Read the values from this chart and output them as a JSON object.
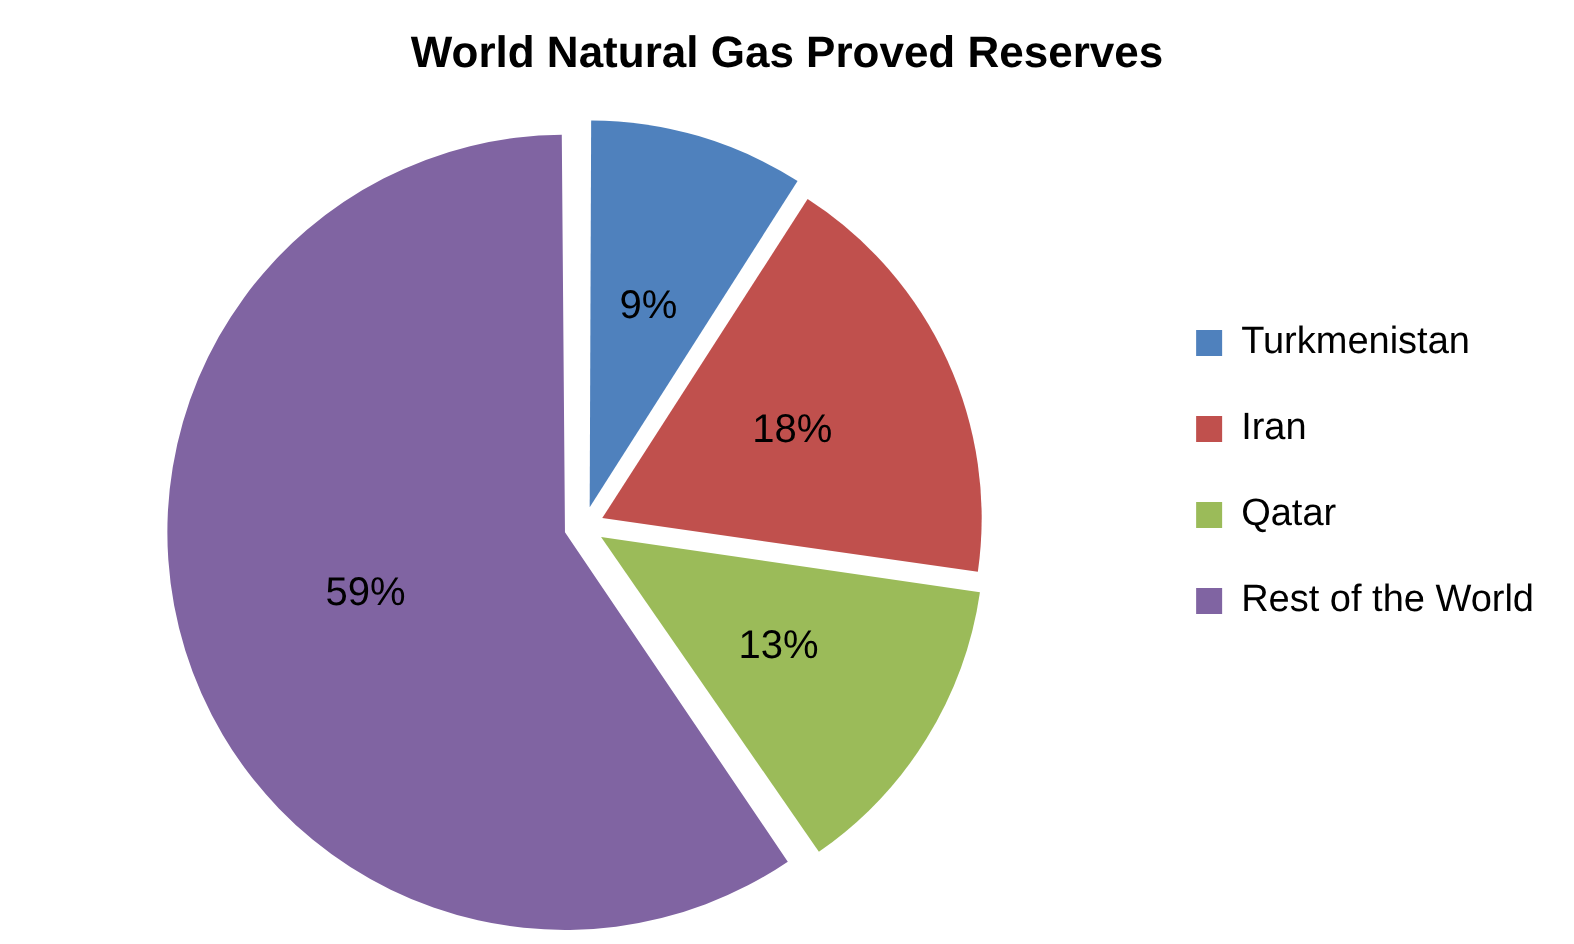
{
  "chart_data": {
    "type": "pie",
    "title": "World Natural Gas Proved Reserves",
    "categories": [
      "Turkmenistan",
      "Iran",
      "Qatar",
      "Rest of the World"
    ],
    "values": [
      9,
      18,
      13,
      59
    ],
    "value_labels": [
      "9%",
      "18%",
      "13%",
      "59%"
    ],
    "colors": [
      "#4f81bd",
      "#c0504d",
      "#9bbb59",
      "#8064a2"
    ],
    "legend": "right"
  }
}
